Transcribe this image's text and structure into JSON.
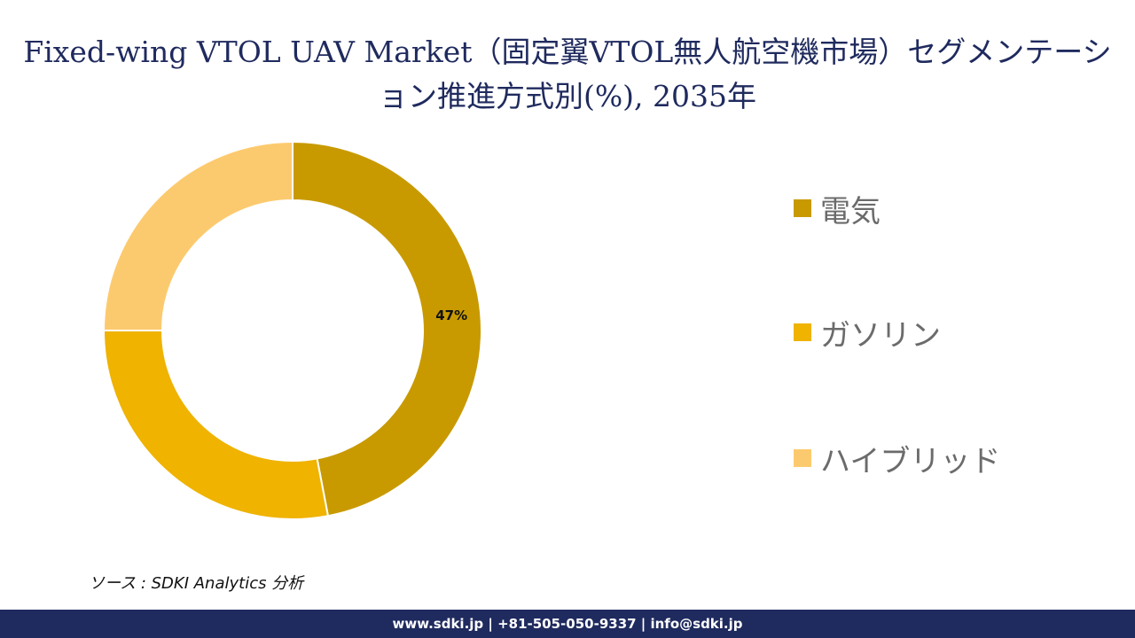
{
  "title": "Fixed-wing VTOL UAV Market（固定翼VTOL無人航空機市場）セグメンテーション推進方式別(%), 2035年",
  "source": "ソース : SDKI Analytics 分析",
  "footer": "www.sdki.jp | +81-505-050-9337 | info@sdki.jp",
  "chart_data": {
    "type": "pie",
    "title": "Fixed-wing VTOL UAV Market（固定翼VTOL無人航空機市場）セグメンテーション推進方式別(%), 2035年",
    "categories": [
      "電気",
      "ガソリン",
      "ハイブリッド"
    ],
    "values": [
      47,
      28,
      25
    ],
    "data_labels": [
      "47%",
      "",
      ""
    ],
    "colors": [
      "#c89a00",
      "#efb300",
      "#fcca6e"
    ],
    "donut": true,
    "legend_position": "right"
  }
}
